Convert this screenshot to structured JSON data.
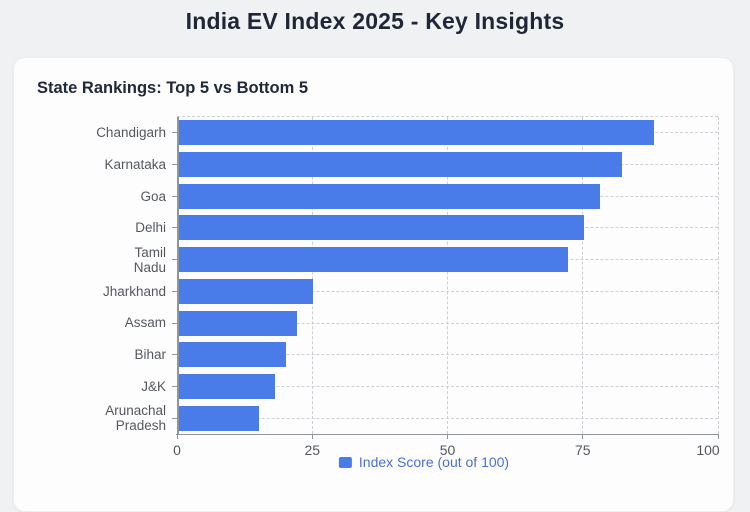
{
  "header": {
    "title": "India EV Index 2025 - Key Insights"
  },
  "card": {
    "heading": "State Rankings: Top 5 vs Bottom 5"
  },
  "chart_data": {
    "type": "bar",
    "orientation": "horizontal",
    "title": "State Rankings: Top 5 vs Bottom 5",
    "categories": [
      "Chandigarh",
      "Karnataka",
      "Goa",
      "Delhi",
      "Tamil Nadu",
      "Jharkhand",
      "Assam",
      "Bihar",
      "J&K",
      "Arunachal Pradesh"
    ],
    "category_display": [
      "Chandigarh",
      "Karnataka",
      "Goa",
      "Delhi",
      "Tamil\nNadu",
      "Jharkhand",
      "Assam",
      "Bihar",
      "J&K",
      "Arunachal\nPradesh"
    ],
    "series": [
      {
        "name": "Index Score (out of 100)",
        "values": [
          88,
          82,
          78,
          75,
          72,
          25,
          22,
          20,
          18,
          15
        ]
      }
    ],
    "xlabel": "",
    "ylabel": "",
    "xlim": [
      0,
      100
    ],
    "x_ticks": [
      0,
      25,
      50,
      75,
      100
    ],
    "x_tick_labels": [
      "0",
      "25",
      "50",
      "75",
      "100"
    ],
    "grid": true,
    "legend": {
      "label": "Index Score (out of 100)",
      "position": "bottom",
      "swatch_icon": "square-swatch"
    },
    "colors": {
      "bar": "#4a7ce9",
      "legend_text": "#4a70d4",
      "axis_line": "#90959b",
      "grid_line": "#ccd0d5",
      "label_text": "#54585e",
      "heading_text": "#20293a",
      "title_text": "#1f2737",
      "page_bg": "#eff1f3",
      "card_bg": "#fdfdfe"
    }
  }
}
